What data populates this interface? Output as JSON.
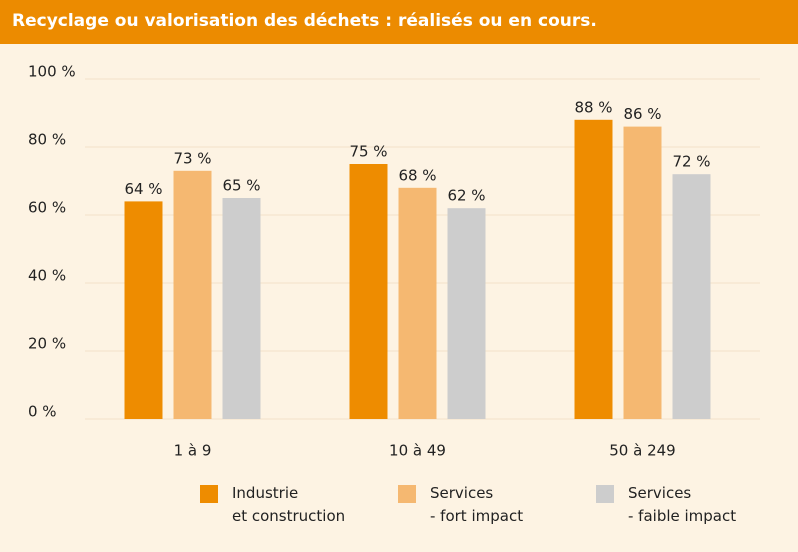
{
  "chart_data": {
    "type": "bar",
    "title": "Recyclage ou valorisation des déchets : réalisés ou en cours.",
    "categories": [
      "1 à 9",
      "10 à 49",
      "50 à 249"
    ],
    "series": [
      {
        "name": "Industrie\net construction",
        "color": "#ee8c00",
        "values": [
          64,
          75,
          88
        ],
        "value_labels": [
          "64 %",
          "75 %",
          "88 %"
        ]
      },
      {
        "name": "Services\n- fort impact",
        "color": "#f5b871",
        "values": [
          73,
          68,
          86
        ],
        "value_labels": [
          "73 %",
          "68 %",
          "86 %"
        ]
      },
      {
        "name": "Services\n- faible impact",
        "color": "#cdcdcd",
        "values": [
          65,
          62,
          72
        ],
        "value_labels": [
          "65 %",
          "62 %",
          "72 %"
        ]
      }
    ],
    "ylim": [
      0,
      100
    ],
    "yticks": [
      {
        "value": 0,
        "label": "0 %"
      },
      {
        "value": 20,
        "label": "20 %"
      },
      {
        "value": 40,
        "label": "40 %"
      },
      {
        "value": 60,
        "label": "60 %"
      },
      {
        "value": 80,
        "label": "80 %"
      },
      {
        "value": 100,
        "label": "100 %"
      }
    ],
    "grid": true
  }
}
